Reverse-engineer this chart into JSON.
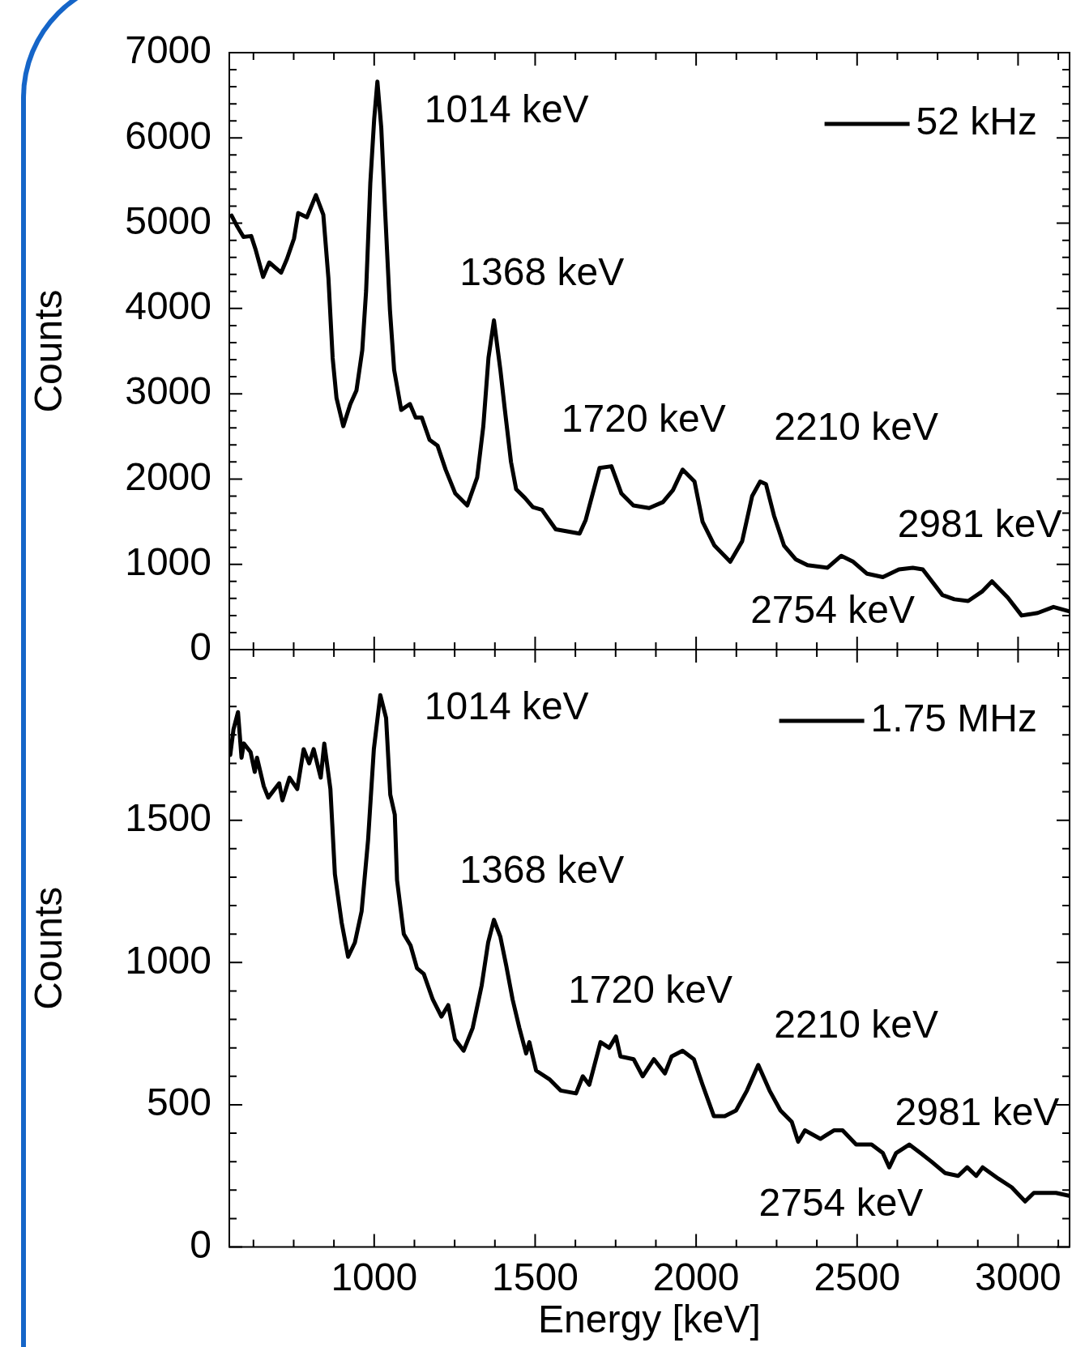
{
  "chart_data": [
    {
      "type": "line",
      "ylabel": "Counts",
      "xlim": [
        550,
        3160
      ],
      "ylim": [
        0,
        7000
      ],
      "tick_labels": "y",
      "legend": "top right",
      "marker": "none",
      "xticks": [
        {
          "value": 625,
          "label": null
        },
        {
          "value": 750,
          "label": null
        },
        {
          "value": 875,
          "label": null
        },
        1000,
        {
          "value": 1125,
          "label": null
        },
        {
          "value": 1250,
          "label": null
        },
        {
          "value": 1375,
          "label": null
        },
        1500,
        {
          "value": 1625,
          "label": null
        },
        {
          "value": 1750,
          "label": null
        },
        {
          "value": 1875,
          "label": null
        },
        2000,
        {
          "value": 2125,
          "label": null
        },
        {
          "value": 2250,
          "label": null
        },
        {
          "value": 2375,
          "label": null
        },
        2500,
        {
          "value": 2625,
          "label": null
        },
        {
          "value": 2750,
          "label": null
        },
        {
          "value": 2875,
          "label": null
        },
        3000,
        {
          "value": 3125,
          "label": null
        }
      ],
      "yticks": [
        0,
        {
          "value": 200,
          "label": null
        },
        {
          "value": 400,
          "label": null
        },
        {
          "value": 600,
          "label": null
        },
        {
          "value": 800,
          "label": null
        },
        1000,
        {
          "value": 1200,
          "label": null
        },
        {
          "value": 1400,
          "label": null
        },
        {
          "value": 1600,
          "label": null
        },
        {
          "value": 1800,
          "label": null
        },
        2000,
        {
          "value": 2200,
          "label": null
        },
        {
          "value": 2400,
          "label": null
        },
        {
          "value": 2600,
          "label": null
        },
        {
          "value": 2800,
          "label": null
        },
        3000,
        {
          "value": 3200,
          "label": null
        },
        {
          "value": 3400,
          "label": null
        },
        {
          "value": 3600,
          "label": null
        },
        {
          "value": 3800,
          "label": null
        },
        4000,
        {
          "value": 4200,
          "label": null
        },
        {
          "value": 4400,
          "label": null
        },
        {
          "value": 4600,
          "label": null
        },
        {
          "value": 4800,
          "label": null
        },
        5000,
        {
          "value": 5200,
          "label": null
        },
        {
          "value": 5400,
          "label": null
        },
        {
          "value": 5600,
          "label": null
        },
        {
          "value": 5800,
          "label": null
        },
        6000,
        {
          "value": 6200,
          "label": null
        },
        {
          "value": 6400,
          "label": null
        },
        {
          "value": 6600,
          "label": null
        },
        {
          "value": 6800,
          "label": null
        },
        7000
      ],
      "x": [
        557,
        575,
        594,
        618,
        631,
        655,
        674,
        711,
        729,
        751,
        764,
        791,
        819,
        842,
        858,
        871,
        883,
        904,
        926,
        945,
        963,
        975,
        988,
        1000,
        1010,
        1022,
        1034,
        1049,
        1062,
        1084,
        1111,
        1129,
        1148,
        1172,
        1197,
        1222,
        1252,
        1289,
        1320,
        1339,
        1355,
        1372,
        1392,
        1406,
        1425,
        1441,
        1468,
        1493,
        1521,
        1564,
        1638,
        1657,
        1700,
        1737,
        1768,
        1805,
        1854,
        1897,
        1928,
        1958,
        1995,
        2020,
        2057,
        2106,
        2143,
        2174,
        2199,
        2217,
        2242,
        2273,
        2309,
        2346,
        2408,
        2451,
        2488,
        2531,
        2580,
        2630,
        2673,
        2704,
        2765,
        2802,
        2845,
        2888,
        2919,
        2968,
        3011,
        3061,
        3110,
        3158
      ],
      "series": [
        {
          "name": "52 kHz",
          "color": "#000000",
          "values": [
            5090,
            4960,
            4840,
            4850,
            4700,
            4370,
            4540,
            4420,
            4580,
            4820,
            5120,
            5070,
            5330,
            5100,
            4350,
            3420,
            2950,
            2620,
            2880,
            3040,
            3510,
            4210,
            5470,
            6220,
            6660,
            6120,
            5140,
            3980,
            3280,
            2810,
            2880,
            2720,
            2720,
            2460,
            2390,
            2110,
            1830,
            1690,
            2020,
            2620,
            3420,
            3860,
            3280,
            2810,
            2200,
            1880,
            1780,
            1670,
            1640,
            1410,
            1360,
            1520,
            2130,
            2150,
            1830,
            1690,
            1660,
            1730,
            1870,
            2110,
            1970,
            1500,
            1220,
            1030,
            1270,
            1800,
            1970,
            1940,
            1570,
            1220,
            1060,
            990,
            960,
            1100,
            1030,
            890,
            850,
            940,
            960,
            940,
            640,
            590,
            570,
            680,
            800,
            610,
            400,
            430,
            500,
            450
          ]
        }
      ],
      "annotations": [
        "1014 keV",
        "1368 keV",
        "1720 keV",
        "2210 keV",
        "2981 keV",
        "2754 keV"
      ]
    },
    {
      "type": "line",
      "xlabel": "Energy [keV]",
      "ylabel": "Counts",
      "xlim": [
        550,
        3160
      ],
      "ylim": [
        0,
        2100
      ],
      "legend": "top right",
      "marker": "none",
      "xticks": [
        {
          "value": 625,
          "label": null
        },
        {
          "value": 750,
          "label": null
        },
        {
          "value": 875,
          "label": null
        },
        1000,
        {
          "value": 1125,
          "label": null
        },
        {
          "value": 1250,
          "label": null
        },
        {
          "value": 1375,
          "label": null
        },
        1500,
        {
          "value": 1625,
          "label": null
        },
        {
          "value": 1750,
          "label": null
        },
        {
          "value": 1875,
          "label": null
        },
        2000,
        {
          "value": 2125,
          "label": null
        },
        {
          "value": 2250,
          "label": null
        },
        {
          "value": 2375,
          "label": null
        },
        2500,
        {
          "value": 2625,
          "label": null
        },
        {
          "value": 2750,
          "label": null
        },
        {
          "value": 2875,
          "label": null
        },
        3000,
        {
          "value": 3125,
          "label": null
        }
      ],
      "yticks": [
        0,
        {
          "value": 100,
          "label": null
        },
        {
          "value": 200,
          "label": null
        },
        {
          "value": 300,
          "label": null
        },
        {
          "value": 400,
          "label": null
        },
        500,
        {
          "value": 600,
          "label": null
        },
        {
          "value": 700,
          "label": null
        },
        {
          "value": 800,
          "label": null
        },
        {
          "value": 900,
          "label": null
        },
        1000,
        {
          "value": 1100,
          "label": null
        },
        {
          "value": 1200,
          "label": null
        },
        {
          "value": 1300,
          "label": null
        },
        {
          "value": 1400,
          "label": null
        },
        1500,
        {
          "value": 1600,
          "label": null
        },
        {
          "value": 1700,
          "label": null
        },
        {
          "value": 1800,
          "label": null
        },
        {
          "value": 1900,
          "label": null
        },
        {
          "value": 2000,
          "label": null
        }
      ],
      "x": [
        553,
        563,
        577,
        588,
        595,
        616,
        629,
        636,
        657,
        671,
        705,
        715,
        737,
        761,
        781,
        798,
        812,
        834,
        845,
        864,
        878,
        899,
        919,
        940,
        961,
        981,
        999,
        1019,
        1037,
        1050,
        1064,
        1071,
        1092,
        1113,
        1133,
        1154,
        1182,
        1209,
        1230,
        1251,
        1278,
        1306,
        1334,
        1354,
        1372,
        1392,
        1410,
        1430,
        1451,
        1472,
        1482,
        1503,
        1544,
        1579,
        1627,
        1648,
        1668,
        1703,
        1730,
        1751,
        1765,
        1806,
        1834,
        1869,
        1903,
        1924,
        1958,
        1993,
        2020,
        2055,
        2089,
        2124,
        2158,
        2193,
        2228,
        2262,
        2297,
        2317,
        2338,
        2386,
        2428,
        2455,
        2497,
        2545,
        2580,
        2600,
        2621,
        2662,
        2697,
        2731,
        2773,
        2814,
        2842,
        2870,
        2890,
        2939,
        2980,
        3022,
        3049,
        3118,
        3158
      ],
      "series": [
        {
          "name": "1.75 MHz",
          "color": "#000000",
          "values": [
            1730,
            1820,
            1880,
            1720,
            1770,
            1740,
            1670,
            1720,
            1620,
            1580,
            1630,
            1570,
            1650,
            1610,
            1750,
            1700,
            1750,
            1650,
            1770,
            1610,
            1310,
            1140,
            1020,
            1070,
            1180,
            1430,
            1750,
            1940,
            1860,
            1590,
            1520,
            1290,
            1100,
            1060,
            980,
            960,
            870,
            810,
            850,
            730,
            690,
            770,
            920,
            1070,
            1150,
            1090,
            990,
            870,
            770,
            680,
            720,
            620,
            590,
            550,
            540,
            600,
            570,
            720,
            700,
            740,
            670,
            660,
            600,
            660,
            610,
            670,
            690,
            660,
            570,
            460,
            460,
            480,
            550,
            640,
            550,
            480,
            440,
            370,
            410,
            380,
            410,
            410,
            360,
            360,
            330,
            280,
            330,
            360,
            330,
            300,
            260,
            250,
            280,
            250,
            280,
            240,
            210,
            160,
            190,
            190,
            180
          ]
        }
      ],
      "annotations": [
        "1014 keV",
        "1368 keV",
        "1720 keV",
        "2210 keV",
        "2981 keV",
        "2754 keV"
      ]
    }
  ]
}
